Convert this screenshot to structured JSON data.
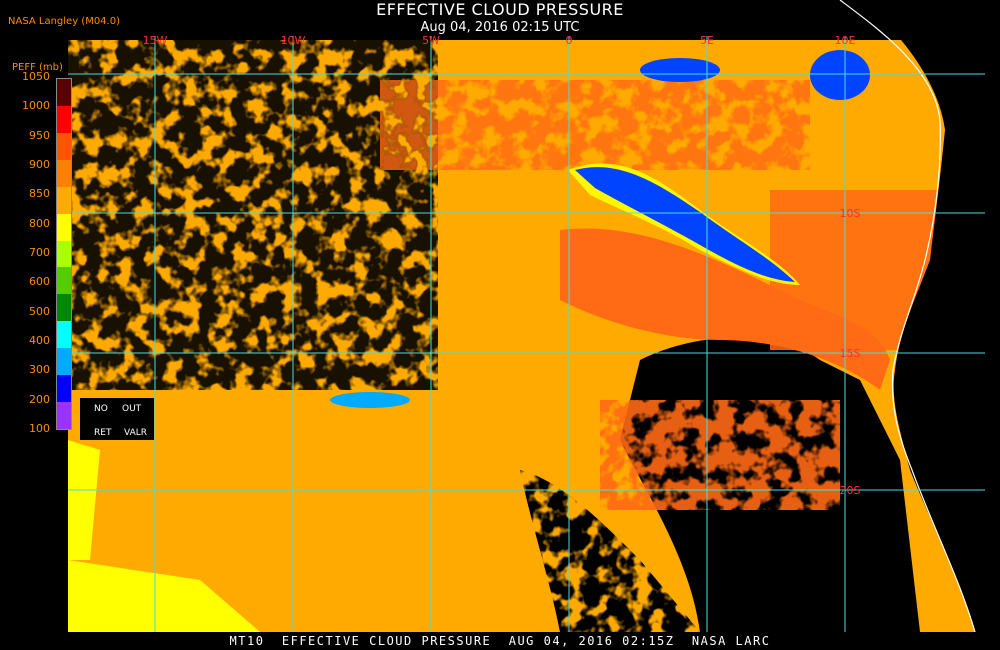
{
  "title": "EFFECTIVE CLOUD PRESSURE",
  "subtitle": "Aug 04, 2016 02:15 UTC",
  "credit": "NASA Langley (M04.0)",
  "footer": "MT10  EFFECTIVE CLOUD PRESSURE  AUG 04, 2016 02:15Z  NASA LARC",
  "legend": {
    "title": "PEFF (mb)",
    "labels": [
      "1050",
      "1000",
      "950",
      "900",
      "850",
      "800",
      "700",
      "600",
      "500",
      "400",
      "300",
      "200",
      "100"
    ],
    "colors": [
      "#5a0000",
      "#ff0000",
      "#ff5500",
      "#ff7f00",
      "#ffaa00",
      "#ffff00",
      "#aaff00",
      "#55cc00",
      "#008800",
      "#00ffff",
      "#00aaff",
      "#0000ff",
      "#9933ff"
    ],
    "no_label": "NO",
    "out_label": "OUT",
    "ret_label": "RET",
    "valr_label": "VALR"
  },
  "grid": {
    "lon_labels": [
      "15W",
      "10W",
      "5W",
      "0",
      "5E",
      "10E"
    ],
    "lat_labels": [
      "10S",
      "15S",
      "20S"
    ],
    "line_color": "#40e0e0",
    "label_color": "#ff3030"
  },
  "colors": {
    "background": "#000000",
    "low_cloud": "#ffaa00",
    "mid_low_cloud": "#ff6a14",
    "high_cloud": "#0044ff",
    "coastline": "#ffffff"
  }
}
